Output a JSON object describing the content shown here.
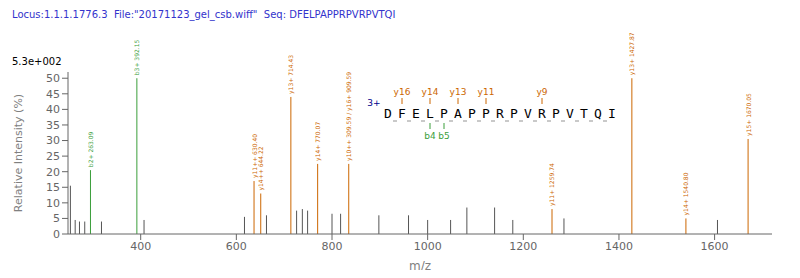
{
  "chart_data": {
    "type": "stem",
    "title": "Locus:1.1.1.1776.3  File:\"20171123_gel_csb.wiff\"  Seq: DFELPAPPRPVRPVTQI",
    "title_color": "#3333cc",
    "intensity_label": "5.3e+002",
    "xlabel": "m/z",
    "ylabel": "Relative Intensity (%)",
    "x": [
      253.0,
      263.0,
      272.0,
      283.0,
      295.0,
      318.0,
      392.0,
      407.0,
      617.0,
      637.0,
      651.0,
      663.0,
      714.0,
      726.0,
      738.0,
      749.0,
      770.0,
      800.0,
      818.0,
      835.0,
      898.0,
      960.0,
      1000.0,
      1048.0,
      1082.0,
      1140.0,
      1178.0,
      1260.0,
      1285.0,
      1427.0,
      1540.0,
      1606.0,
      1670.0
    ],
    "values": [
      15.5,
      4.5,
      4.0,
      4.0,
      20.5,
      4.0,
      50.0,
      4.5,
      5.5,
      17.0,
      13.0,
      6.0,
      44.0,
      7.5,
      8.0,
      7.5,
      22.5,
      6.5,
      6.5,
      22.5,
      6.0,
      6.0,
      4.5,
      4.5,
      8.5,
      8.5,
      4.5,
      8.0,
      5.0,
      50.0,
      5.0,
      4.5,
      30.5
    ],
    "colors": [
      "#555555",
      "#555555",
      "#555555",
      "#555555",
      "#3a9e3a",
      "#555555",
      "#3a9e3a",
      "#555555",
      "#555555",
      "#cc6600",
      "#cc6600",
      "#555555",
      "#cc6600",
      "#555555",
      "#555555",
      "#555555",
      "#cc6600",
      "#555555",
      "#555555",
      "#cc6600",
      "#555555",
      "#555555",
      "#555555",
      "#555555",
      "#555555",
      "#555555",
      "#555555",
      "#cc6600",
      "#555555",
      "#cc6600",
      "#cc6600",
      "#555555",
      "#cc6600"
    ],
    "labels": [
      null,
      null,
      null,
      null,
      "b2+ 263.09",
      null,
      "b3+ 392.15",
      null,
      null,
      "y11++ 630.40",
      "y14++ 644.22",
      null,
      "y13+ 714.43",
      null,
      null,
      null,
      "y14+ 770.07",
      null,
      null,
      "y10++ 309.59 / y16+ 909.59",
      null,
      null,
      null,
      null,
      null,
      null,
      null,
      "y11+ 1259.74",
      null,
      "y13+ 1427.87",
      "y14+ 1540.80",
      null,
      "y15+ 1670.05"
    ],
    "xlim": [
      248,
      1720
    ],
    "xticks": [
      400,
      600,
      800,
      1000,
      1200,
      1400,
      1600
    ],
    "ylim": [
      0,
      52
    ],
    "yticks": [
      0,
      5,
      10,
      15,
      20,
      25,
      30,
      35,
      40,
      45,
      50
    ],
    "grid": false,
    "sequence": {
      "letters": [
        "D",
        "F",
        "E",
        "L",
        "P",
        "A",
        "P",
        "P",
        "R",
        "P",
        "V",
        "R",
        "P",
        "V",
        "T",
        "Q",
        "I"
      ],
      "y_ions": {
        "color": "#cc6600",
        "items": [
          {
            "index": 1,
            "label": "y16"
          },
          {
            "index": 3,
            "label": "y14"
          },
          {
            "index": 5,
            "label": "y13"
          },
          {
            "index": 7,
            "label": "y11"
          },
          {
            "index": 11,
            "label": "y9"
          }
        ]
      },
      "b_ions": {
        "color": "#3a9e3a",
        "items": [
          {
            "index": 3,
            "label": "b4"
          },
          {
            "index": 4,
            "label": "b5"
          }
        ]
      },
      "charge_label": "3+",
      "charge_color": "#00008B"
    }
  }
}
